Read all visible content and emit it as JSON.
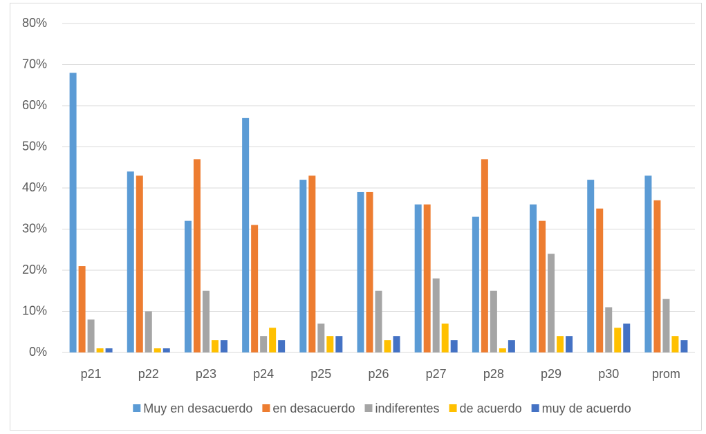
{
  "chart_data": {
    "type": "bar",
    "categories": [
      "p21",
      "p22",
      "p23",
      "p24",
      "p25",
      "p26",
      "p27",
      "p28",
      "p29",
      "p30",
      "prom"
    ],
    "series": [
      {
        "name": "Muy en desacuerdo",
        "color": "#5b9bd5",
        "values": [
          68,
          44,
          32,
          57,
          42,
          39,
          36,
          33,
          36,
          42,
          43
        ]
      },
      {
        "name": "en desacuerdo",
        "color": "#ed7d31",
        "values": [
          21,
          43,
          47,
          31,
          43,
          39,
          36,
          47,
          32,
          35,
          37
        ]
      },
      {
        "name": "indiferentes",
        "color": "#a5a5a5",
        "values": [
          8,
          10,
          15,
          4,
          7,
          15,
          18,
          15,
          24,
          11,
          13
        ]
      },
      {
        "name": "de acuerdo",
        "color": "#ffc000",
        "values": [
          1,
          1,
          3,
          6,
          4,
          3,
          7,
          1,
          4,
          6,
          4
        ]
      },
      {
        "name": "muy de acuerdo",
        "color": "#4472c4",
        "values": [
          1,
          1,
          3,
          3,
          4,
          4,
          3,
          3,
          4,
          7,
          3
        ]
      }
    ],
    "ylim": [
      0,
      80
    ],
    "yticks": [
      {
        "value": 0,
        "label": "0%"
      },
      {
        "value": 10,
        "label": "10%"
      },
      {
        "value": 20,
        "label": "20%"
      },
      {
        "value": 30,
        "label": "30%"
      },
      {
        "value": 40,
        "label": "40%"
      },
      {
        "value": 50,
        "label": "50%"
      },
      {
        "value": 60,
        "label": "60%"
      },
      {
        "value": 70,
        "label": "70%"
      },
      {
        "value": 80,
        "label": "80%"
      }
    ],
    "grid": true,
    "legend": "bottom"
  }
}
